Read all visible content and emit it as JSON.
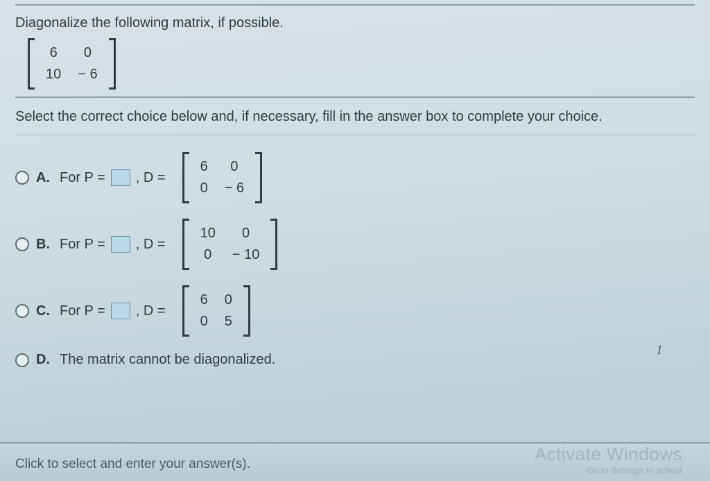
{
  "question": {
    "prompt": "Diagonalize the following matrix, if possible.",
    "matrix": {
      "rows": [
        [
          "6",
          "0"
        ],
        [
          "10",
          "− 6"
        ]
      ],
      "cols": 2,
      "cell_fontsize": 20
    }
  },
  "instruction": "Select the correct choice below and, if necessary, fill in the answer box to complete your choice.",
  "choices": [
    {
      "letter": "A.",
      "prefix": "For P =",
      "has_blank": true,
      "mid": ", D =",
      "matrix": {
        "rows": [
          [
            "6",
            "0"
          ],
          [
            "0",
            "− 6"
          ]
        ],
        "cols": 2
      }
    },
    {
      "letter": "B.",
      "prefix": "For P =",
      "has_blank": true,
      "mid": ", D =",
      "matrix": {
        "rows": [
          [
            "10",
            "0"
          ],
          [
            "0",
            "− 10"
          ]
        ],
        "cols": 2
      }
    },
    {
      "letter": "C.",
      "prefix": "For P =",
      "has_blank": true,
      "mid": ", D =",
      "matrix": {
        "rows": [
          [
            "6",
            "0"
          ],
          [
            "0",
            "5"
          ]
        ],
        "cols": 2
      }
    },
    {
      "letter": "D.",
      "text_only": "The matrix cannot be diagonalized."
    }
  ],
  "footer": "Click to select and enter your answer(s).",
  "watermark": {
    "title": "Activate Windows",
    "sub": "Go to Settings to activat"
  },
  "colors": {
    "text": "#2e3c44",
    "rule": "#8aa0a8",
    "blank_bg": "#b8d8e8",
    "blank_border": "#6a8ea0",
    "radio_border": "#5a6e78"
  }
}
